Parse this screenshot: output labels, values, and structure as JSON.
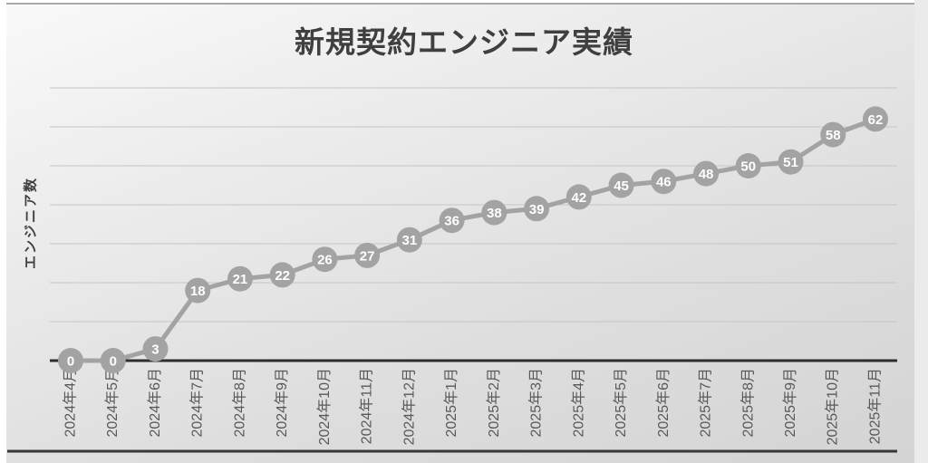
{
  "chart_data": {
    "type": "line",
    "title": "新規契約エンジニア実績",
    "xlabel": "",
    "ylabel": "エンジニア数",
    "categories": [
      "2024年4月",
      "2024年5月",
      "2024年6月",
      "2024年7月",
      "2024年8月",
      "2024年9月",
      "2024年10月",
      "2024年11月",
      "2024年12月",
      "2025年1月",
      "2025年2月",
      "2025年3月",
      "2025年4月",
      "2025年5月",
      "2025年6月",
      "2025年7月",
      "2025年8月",
      "2025年9月",
      "2025年10月",
      "2025年11月"
    ],
    "values": [
      0,
      0,
      3,
      18,
      21,
      22,
      26,
      27,
      31,
      36,
      38,
      39,
      42,
      45,
      46,
      48,
      50,
      51,
      58,
      62
    ],
    "ylim": [
      0,
      70
    ],
    "grid_step": 10,
    "grid": true,
    "y_tick_labels_shown": false,
    "legend_position": "none",
    "colors": {
      "series": "#a3a3a3",
      "marker": "#a3a3a3",
      "marker_label": "#ffffff",
      "axis_line": "#2d2d2d",
      "gridline": "#c5c5c5",
      "title": "#3f3f3f",
      "tick_label": "#595959",
      "slide_border_top": "#a8a8a8",
      "slide_border_bottom": "#383838",
      "background_top": "#f9f9f9",
      "background_bottom": "#d4d4d4"
    }
  }
}
